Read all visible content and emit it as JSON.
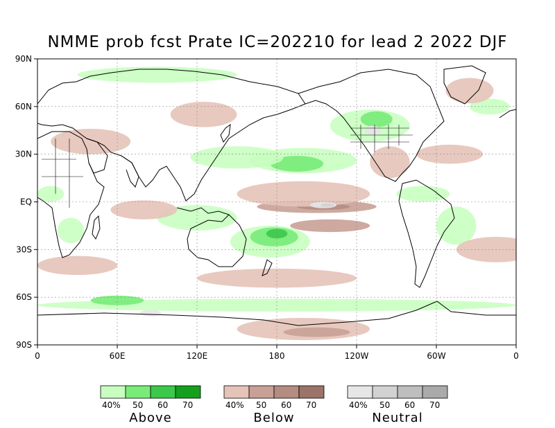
{
  "title": "NMME prob fcst Prate IC=202210 for lead 2 2022 DJF",
  "map": {
    "lat_ticks": [
      "90N",
      "60N",
      "30N",
      "EQ",
      "30S",
      "60S",
      "90S"
    ],
    "lon_ticks": [
      "0",
      "60E",
      "120E",
      "180",
      "120W",
      "60W",
      "0"
    ],
    "lat_range": [
      -90,
      90
    ],
    "lon_range": [
      0,
      360
    ],
    "gridlines": "dashed",
    "projection": "cylindrical equidistant"
  },
  "legend": {
    "groups": [
      {
        "name": "Above",
        "colors": [
          "#c8ffc0",
          "#78eb78",
          "#3cc84b",
          "#14a01e"
        ],
        "labels": [
          "40%",
          "50",
          "60",
          "70"
        ]
      },
      {
        "name": "Below",
        "colors": [
          "#e6c3b9",
          "#c8a096",
          "#b48c82",
          "#9b7369"
        ],
        "labels": [
          "40%",
          "50",
          "60",
          "70"
        ]
      },
      {
        "name": "Neutral",
        "colors": [
          "#e6e6e6",
          "#d2d2d2",
          "#bebebe",
          "#aaaaaa"
        ],
        "labels": [
          "40%",
          "50",
          "60",
          "70"
        ]
      }
    ]
  },
  "fields": [
    {
      "cat": "above",
      "lvl": 1,
      "lon": 200,
      "lat": 26,
      "rx": 40,
      "ry": 8
    },
    {
      "cat": "above",
      "lvl": 2,
      "lon": 195,
      "lat": 24,
      "rx": 20,
      "ry": 5
    },
    {
      "cat": "above",
      "lvl": 1,
      "lon": 150,
      "lat": 28,
      "rx": 35,
      "ry": 7
    },
    {
      "cat": "above",
      "lvl": 1,
      "lon": 250,
      "lat": 48,
      "rx": 30,
      "ry": 10
    },
    {
      "cat": "above",
      "lvl": 2,
      "lon": 255,
      "lat": 52,
      "rx": 12,
      "ry": 5
    },
    {
      "cat": "above",
      "lvl": 1,
      "lon": 175,
      "lat": -25,
      "rx": 30,
      "ry": 10
    },
    {
      "cat": "above",
      "lvl": 2,
      "lon": 178,
      "lat": -22,
      "rx": 18,
      "ry": 6
    },
    {
      "cat": "above",
      "lvl": 3,
      "lon": 180,
      "lat": -20,
      "rx": 8,
      "ry": 3
    },
    {
      "cat": "above",
      "lvl": 1,
      "lon": 120,
      "lat": -10,
      "rx": 30,
      "ry": 8
    },
    {
      "cat": "above",
      "lvl": 1,
      "lon": 90,
      "lat": 80,
      "rx": 60,
      "ry": 5
    },
    {
      "cat": "above",
      "lvl": 1,
      "lon": 180,
      "lat": -65,
      "rx": 180,
      "ry": 4
    },
    {
      "cat": "above",
      "lvl": 2,
      "lon": 60,
      "lat": -62,
      "rx": 20,
      "ry": 3
    },
    {
      "cat": "above",
      "lvl": 1,
      "lon": 25,
      "lat": -18,
      "rx": 10,
      "ry": 8
    },
    {
      "cat": "above",
      "lvl": 1,
      "lon": 315,
      "lat": -15,
      "rx": 15,
      "ry": 12
    },
    {
      "cat": "above",
      "lvl": 1,
      "lon": 290,
      "lat": 5,
      "rx": 20,
      "ry": 5
    },
    {
      "cat": "above",
      "lvl": 1,
      "lon": 10,
      "lat": 5,
      "rx": 10,
      "ry": 5
    },
    {
      "cat": "above",
      "lvl": 1,
      "lon": 340,
      "lat": 60,
      "rx": 15,
      "ry": 5
    },
    {
      "cat": "below",
      "lvl": 2,
      "lon": 210,
      "lat": -3,
      "rx": 45,
      "ry": 4
    },
    {
      "cat": "below",
      "lvl": 3,
      "lon": 215,
      "lat": -3,
      "rx": 20,
      "ry": 2
    },
    {
      "cat": "below",
      "lvl": 1,
      "lon": 200,
      "lat": 5,
      "rx": 50,
      "ry": 8
    },
    {
      "cat": "below",
      "lvl": 2,
      "lon": 220,
      "lat": -15,
      "rx": 30,
      "ry": 4
    },
    {
      "cat": "below",
      "lvl": 1,
      "lon": 200,
      "lat": -80,
      "rx": 50,
      "ry": 7
    },
    {
      "cat": "below",
      "lvl": 2,
      "lon": 210,
      "lat": -82,
      "rx": 25,
      "ry": 3
    },
    {
      "cat": "below",
      "lvl": 1,
      "lon": 180,
      "lat": -48,
      "rx": 60,
      "ry": 6
    },
    {
      "cat": "below",
      "lvl": 1,
      "lon": 30,
      "lat": -40,
      "rx": 30,
      "ry": 6
    },
    {
      "cat": "below",
      "lvl": 1,
      "lon": 80,
      "lat": -5,
      "rx": 25,
      "ry": 6
    },
    {
      "cat": "below",
      "lvl": 1,
      "lon": 40,
      "lat": 38,
      "rx": 30,
      "ry": 8
    },
    {
      "cat": "below",
      "lvl": 1,
      "lon": 325,
      "lat": 70,
      "rx": 18,
      "ry": 8
    },
    {
      "cat": "below",
      "lvl": 1,
      "lon": 265,
      "lat": 25,
      "rx": 15,
      "ry": 10
    },
    {
      "cat": "below",
      "lvl": 1,
      "lon": 310,
      "lat": 30,
      "rx": 25,
      "ry": 6
    },
    {
      "cat": "below",
      "lvl": 1,
      "lon": 345,
      "lat": -30,
      "rx": 30,
      "ry": 8
    },
    {
      "cat": "below",
      "lvl": 1,
      "lon": 125,
      "lat": 55,
      "rx": 25,
      "ry": 8
    },
    {
      "cat": "neutral",
      "lvl": 1,
      "lon": 215,
      "lat": -2,
      "rx": 10,
      "ry": 2
    },
    {
      "cat": "neutral",
      "lvl": 2,
      "lon": 218,
      "lat": -2,
      "rx": 5,
      "ry": 1
    },
    {
      "cat": "neutral",
      "lvl": 1,
      "lon": 252,
      "lat": 45,
      "rx": 6,
      "ry": 3
    },
    {
      "cat": "neutral",
      "lvl": 1,
      "lon": 85,
      "lat": -70,
      "rx": 8,
      "ry": 2
    }
  ]
}
